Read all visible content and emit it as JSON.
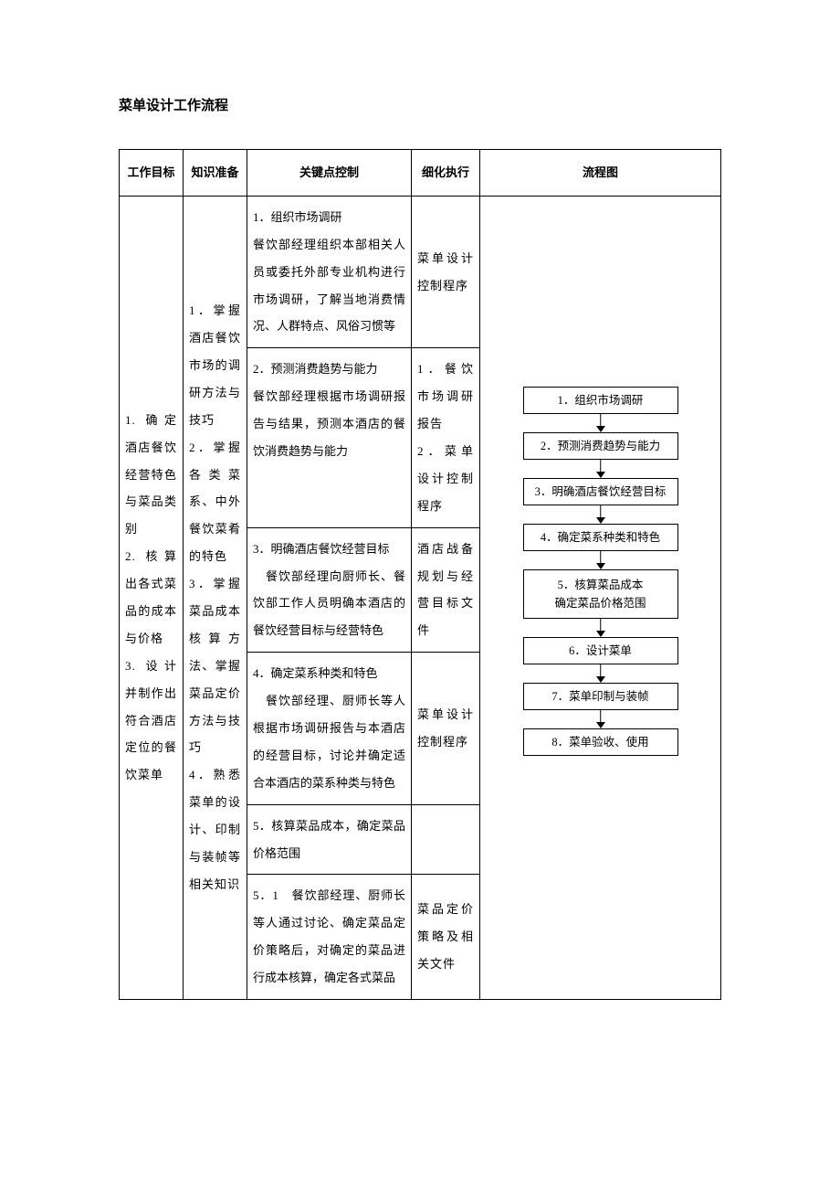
{
  "title": "菜单设计工作流程",
  "headers": {
    "col1": "工作目标",
    "col2": "知识准备",
    "col3": "关键点控制",
    "col4": "细化执行",
    "col5": "流程图"
  },
  "work_goals": "1. 确定酒店餐饮经营特色与菜品类别\n2. 核算出各式菜品的成本与价格\n3. 设计并制作出符合酒店定位的餐饮菜单",
  "knowledge_prep": "1．掌握酒店餐饮市场的调研方法与技巧\n2．掌握各类菜系、中外餐饮菜肴的特色\n3．掌握菜品成本核算方法、掌握菜品定价方法与技巧\n4．熟悉菜单的设计、印制与装帧等相关知识",
  "key_points": {
    "p1": "1．组织市场调研\n餐饮部经理组织本部相关人员或委托外部专业机构进行市场调研，了解当地消费情况、人群特点、风俗习惯等",
    "p2": "2．预测消费趋势与能力\n餐饮部经理根据市场调研报告与结果，预测本酒店的餐饮消费趋势与能力",
    "p3": "3．明确酒店餐饮经营目标\n　餐饮部经理向厨师长、餐饮部工作人员明确本酒店的餐饮经营目标与经营特色",
    "p4": "4．确定菜系种类和特色\n　餐饮部经理、厨师长等人根据市场调研报告与本酒店的经营目标，讨论并确定适合本酒店的菜系种类与特色",
    "p5": "5．核算菜品成本，确定菜品价格范围",
    "p5_1": "5．1　餐饮部经理、厨师长等人通过讨论、确定菜品定价策略后，对确定的菜品进行成本核算，确定各式菜品"
  },
  "exec_details": {
    "d1": "菜单设计控制程序",
    "d2": "1．餐饮市场调研报告\n2．菜单设计控制程序",
    "d3": "酒店战备规划与经营目标文件",
    "d4": "菜单设计控制程序",
    "d5_1": "菜品定价策略及相关文件"
  },
  "flowchart": {
    "steps": [
      "1．组织市场调研",
      "2．预测消费趋势与能力",
      "3．明确酒店餐饮经营目标",
      "4．确定菜系种类和特色",
      "5．核算菜品成本\n确定菜品价格范围",
      "6．设计菜单",
      "7．菜单印制与装帧",
      "8．菜单验收、使用"
    ]
  },
  "colors": {
    "text": "#000000",
    "background": "#ffffff",
    "border": "#000000"
  }
}
